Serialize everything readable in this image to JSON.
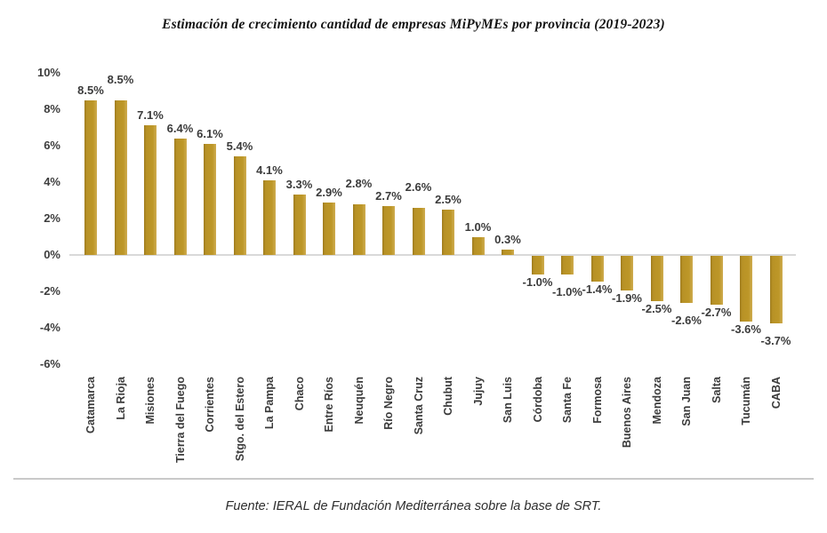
{
  "title": "Estimación de crecimiento cantidad de empresas MiPyMEs por provincia (2019-2023)",
  "source": "Fuente: IERAL de Fundación Mediterránea sobre la base de SRT.",
  "chart_data": {
    "type": "bar",
    "title": "Estimación de crecimiento cantidad de empresas MiPyMEs por provincia (2019-2023)",
    "xlabel": "",
    "ylabel": "",
    "categories": [
      "Catamarca",
      "La Rioja",
      "Misiones",
      "Tierra del Fuego",
      "Corrientes",
      "Stgo. del Estero",
      "La Pampa",
      "Chaco",
      "Entre Ríos",
      "Neuquén",
      "Río Negro",
      "Santa Cruz",
      "Chubut",
      "Jujuy",
      "San Luis",
      "Córdoba",
      "Santa Fe",
      "Formosa",
      "Buenos Aires",
      "Mendoza",
      "San Juan",
      "Salta",
      "Tucumán",
      "CABA"
    ],
    "values": [
      8.5,
      8.5,
      7.1,
      6.4,
      6.1,
      5.4,
      4.1,
      3.3,
      2.9,
      2.8,
      2.7,
      2.6,
      2.5,
      1.0,
      0.3,
      -1.0,
      -1.0,
      -1.4,
      -1.9,
      -2.5,
      -2.6,
      -2.7,
      -3.6,
      -3.7
    ],
    "value_labels": [
      "8.5%",
      "8.5%",
      "7.1%",
      "6.4%",
      "6.1%",
      "5.4%",
      "4.1%",
      "3.3%",
      "2.9%",
      "2.8%",
      "2.7%",
      "2.6%",
      "2.5%",
      "1.0%",
      "0.3%",
      "-1.0%",
      "-1.0%",
      "-1.4%",
      "-1.9%",
      "-2.5%",
      "-2.6%",
      "-2.7%",
      "-3.6%",
      "-3.7%"
    ],
    "ylim": [
      -6,
      10
    ],
    "y_ticks": [
      10,
      8,
      6,
      4,
      2,
      0,
      -2,
      -4,
      -6
    ],
    "y_tick_labels": [
      "10%",
      "8%",
      "6%",
      "4%",
      "2%",
      "0%",
      "-2%",
      "-4%",
      "-6%"
    ],
    "grid": "none",
    "legend": "none",
    "zero_axis_line": true,
    "bar_color": "#BD9728",
    "text_color": "#3B3B3B",
    "source": "Fuente: IERAL de Fundación Mediterránea sobre la base de SRT."
  }
}
